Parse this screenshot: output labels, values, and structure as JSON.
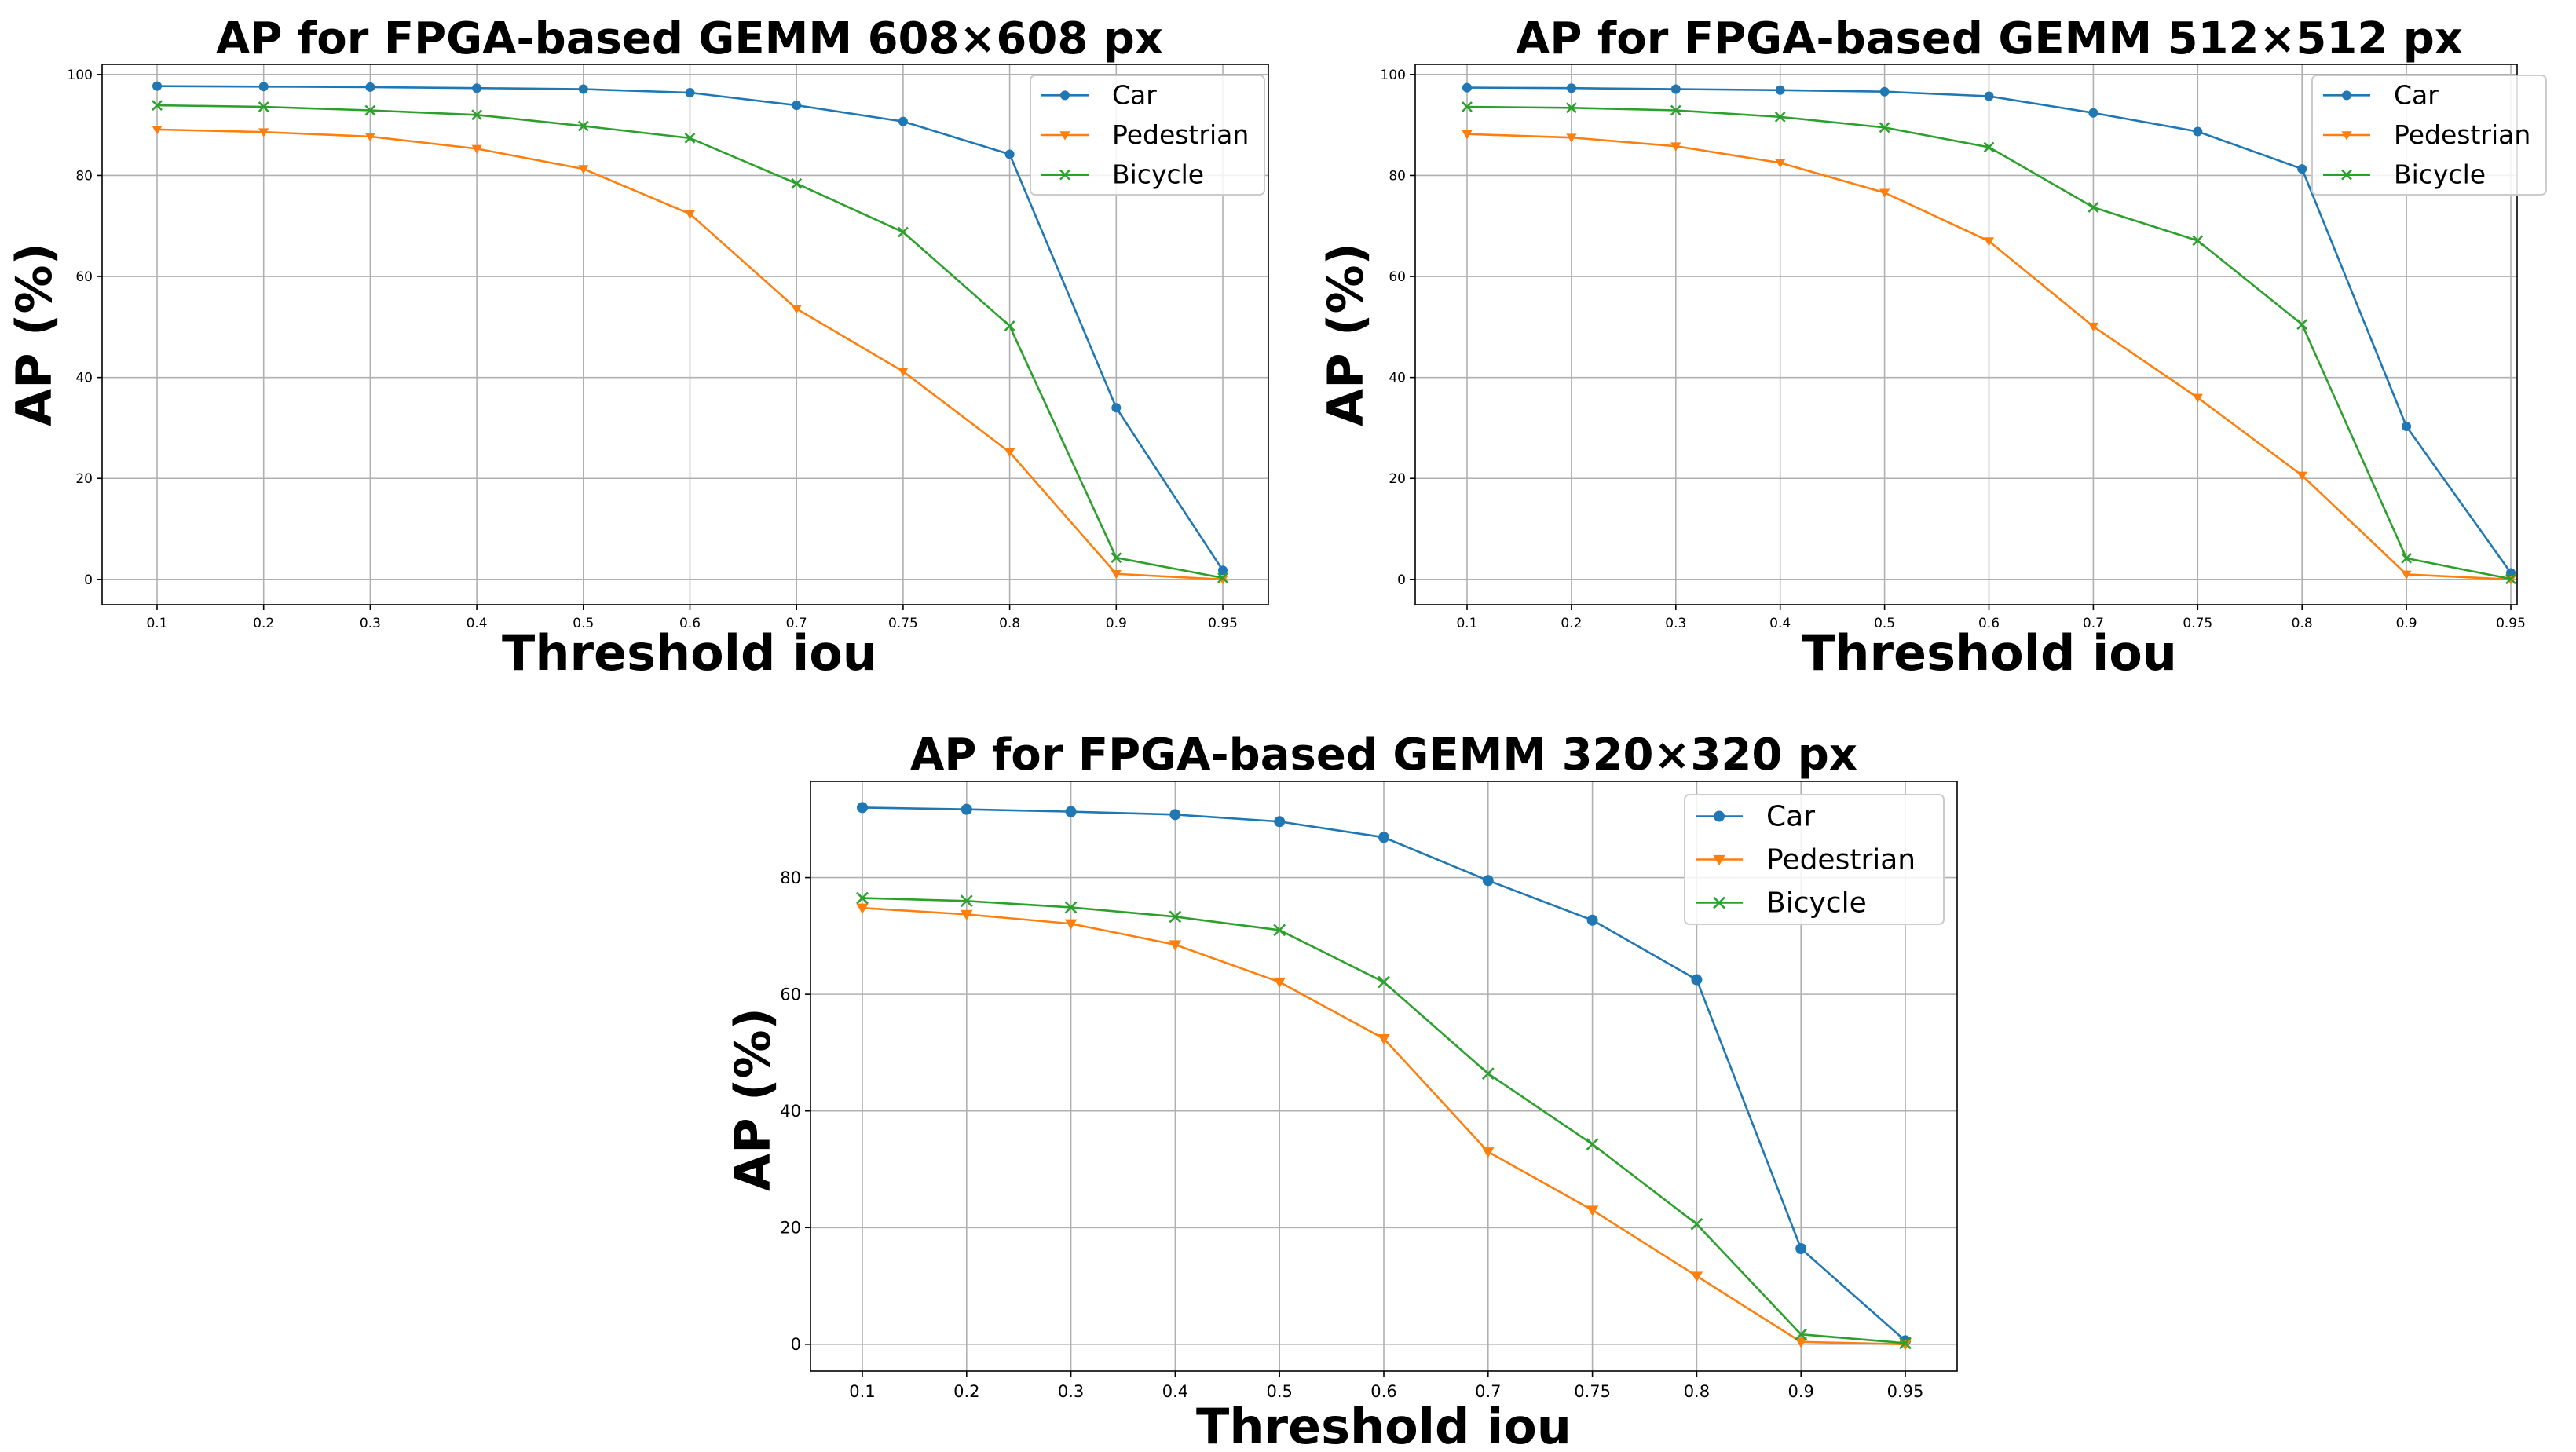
{
  "chart_data": [
    {
      "type": "line",
      "title": "AP for FPGA-based GEMM 608×608 px",
      "xlabel": "Threshold iou",
      "ylabel": "AP (%)",
      "categories": [
        "0.1",
        "0.2",
        "0.3",
        "0.4",
        "0.5",
        "0.6",
        "0.7",
        "0.75",
        "0.8",
        "0.9",
        "0.95"
      ],
      "ylim": [
        -5,
        102
      ],
      "yticks": [
        0,
        20,
        40,
        60,
        80,
        100
      ],
      "grid": true,
      "legend_position": "top-right",
      "series": [
        {
          "name": "Car",
          "color": "#1f77b4",
          "marker": "circle",
          "values": [
            97.7,
            97.6,
            97.5,
            97.3,
            97.1,
            96.4,
            93.9,
            90.7,
            84.2,
            34.0,
            1.8
          ]
        },
        {
          "name": "Pedestrian",
          "color": "#ff7f0e",
          "marker": "triangle-down",
          "values": [
            89.1,
            88.6,
            87.7,
            85.3,
            81.3,
            72.4,
            53.6,
            41.2,
            25.2,
            1.1,
            0.0
          ]
        },
        {
          "name": "Bicycle",
          "color": "#2ca02c",
          "marker": "x",
          "values": [
            93.9,
            93.6,
            92.9,
            92.0,
            89.8,
            87.4,
            78.4,
            68.8,
            50.2,
            4.3,
            0.3
          ]
        }
      ]
    },
    {
      "type": "line",
      "title": "AP for FPGA-based GEMM 512×512 px",
      "xlabel": "Threshold iou",
      "ylabel": "AP (%)",
      "categories": [
        "0.1",
        "0.2",
        "0.3",
        "0.4",
        "0.5",
        "0.6",
        "0.7",
        "0.75",
        "0.8",
        "0.9",
        "0.95"
      ],
      "ylim": [
        -5,
        102
      ],
      "yticks": [
        0,
        20,
        40,
        60,
        80,
        100
      ],
      "grid": true,
      "legend_position": "top-right",
      "series": [
        {
          "name": "Car",
          "color": "#1f77b4",
          "marker": "circle",
          "values": [
            97.4,
            97.3,
            97.1,
            96.9,
            96.6,
            95.7,
            92.4,
            88.7,
            81.3,
            30.3,
            1.3
          ]
        },
        {
          "name": "Pedestrian",
          "color": "#ff7f0e",
          "marker": "triangle-down",
          "values": [
            88.2,
            87.5,
            85.8,
            82.5,
            76.6,
            67.0,
            50.1,
            36.0,
            20.6,
            1.0,
            0.0
          ]
        },
        {
          "name": "Bicycle",
          "color": "#2ca02c",
          "marker": "x",
          "values": [
            93.6,
            93.4,
            92.9,
            91.6,
            89.5,
            85.6,
            73.7,
            67.1,
            50.5,
            4.2,
            0.1
          ]
        }
      ]
    },
    {
      "type": "line",
      "title": "AP for FPGA-based GEMM 320×320 px",
      "xlabel": "Threshold iou",
      "ylabel": "AP (%)",
      "categories": [
        "0.1",
        "0.2",
        "0.3",
        "0.4",
        "0.5",
        "0.6",
        "0.7",
        "0.75",
        "0.8",
        "0.9",
        "0.95"
      ],
      "ylim": [
        -4.6,
        96.5
      ],
      "yticks": [
        0,
        20,
        40,
        60,
        80
      ],
      "grid": true,
      "legend_position": "top-right",
      "series": [
        {
          "name": "Car",
          "color": "#1f77b4",
          "marker": "circle",
          "values": [
            92.0,
            91.7,
            91.3,
            90.8,
            89.6,
            86.9,
            79.5,
            72.7,
            62.5,
            16.4,
            0.6
          ]
        },
        {
          "name": "Pedestrian",
          "color": "#ff7f0e",
          "marker": "triangle-down",
          "values": [
            74.8,
            73.7,
            72.1,
            68.5,
            62.1,
            52.4,
            33.0,
            23.0,
            11.7,
            0.4,
            0.0
          ]
        },
        {
          "name": "Bicycle",
          "color": "#2ca02c",
          "marker": "x",
          "values": [
            76.5,
            76.0,
            74.9,
            73.3,
            71.0,
            62.1,
            46.4,
            34.3,
            20.6,
            1.7,
            0.2
          ]
        }
      ]
    }
  ]
}
